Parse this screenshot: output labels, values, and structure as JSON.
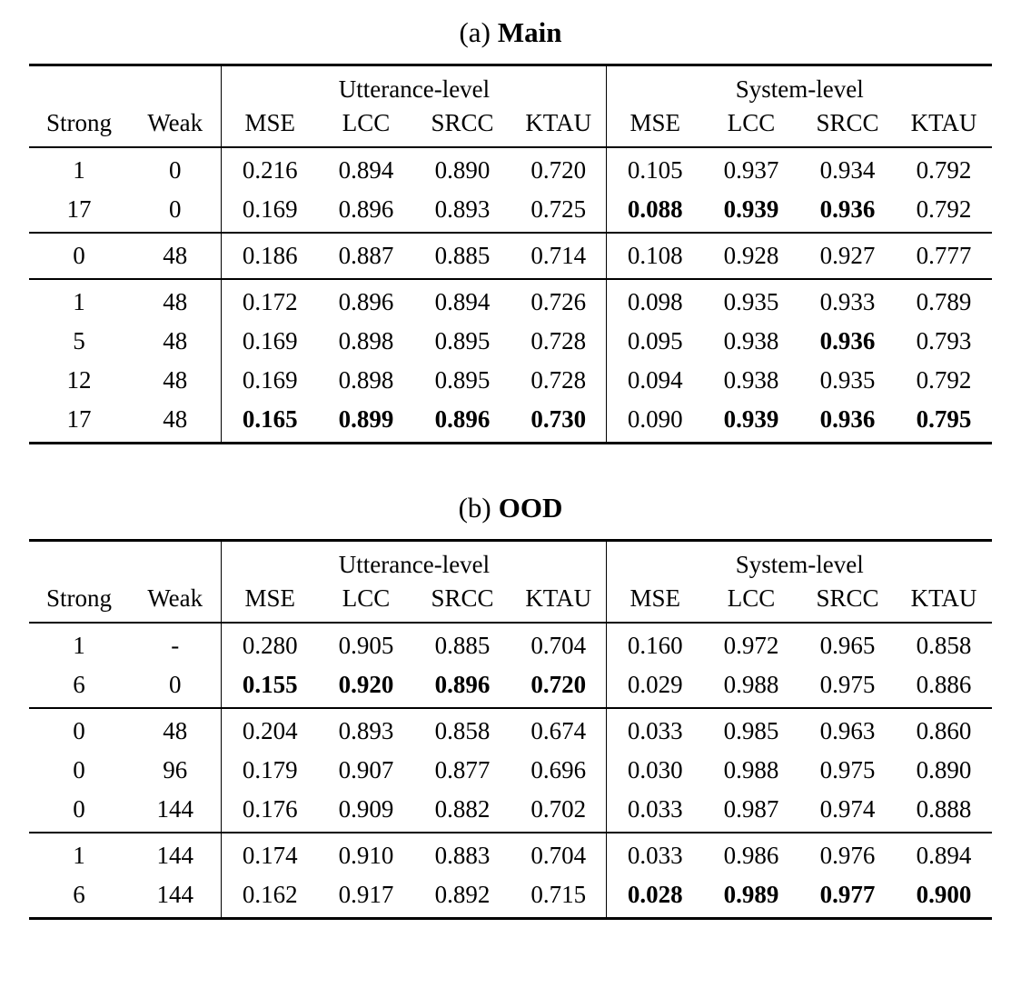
{
  "tables": [
    {
      "caption_prefix": "(a)",
      "caption_title": "Main",
      "col_groups": [
        "Utterance-level",
        "System-level"
      ],
      "headers": [
        "Strong",
        "Weak",
        "MSE",
        "LCC",
        "SRCC",
        "KTAU",
        "MSE",
        "LCC",
        "SRCC",
        "KTAU"
      ],
      "groups": [
        {
          "rows": [
            {
              "cells": [
                "1",
                "0",
                "0.216",
                "0.894",
                "0.890",
                "0.720",
                "0.105",
                "0.937",
                "0.934",
                "0.792"
              ],
              "bold": []
            },
            {
              "cells": [
                "17",
                "0",
                "0.169",
                "0.896",
                "0.893",
                "0.725",
                "0.088",
                "0.939",
                "0.936",
                "0.792"
              ],
              "bold": [
                6,
                7,
                8
              ]
            }
          ]
        },
        {
          "rows": [
            {
              "cells": [
                "0",
                "48",
                "0.186",
                "0.887",
                "0.885",
                "0.714",
                "0.108",
                "0.928",
                "0.927",
                "0.777"
              ],
              "bold": []
            }
          ]
        },
        {
          "rows": [
            {
              "cells": [
                "1",
                "48",
                "0.172",
                "0.896",
                "0.894",
                "0.726",
                "0.098",
                "0.935",
                "0.933",
                "0.789"
              ],
              "bold": []
            },
            {
              "cells": [
                "5",
                "48",
                "0.169",
                "0.898",
                "0.895",
                "0.728",
                "0.095",
                "0.938",
                "0.936",
                "0.793"
              ],
              "bold": [
                8
              ]
            },
            {
              "cells": [
                "12",
                "48",
                "0.169",
                "0.898",
                "0.895",
                "0.728",
                "0.094",
                "0.938",
                "0.935",
                "0.792"
              ],
              "bold": []
            },
            {
              "cells": [
                "17",
                "48",
                "0.165",
                "0.899",
                "0.896",
                "0.730",
                "0.090",
                "0.939",
                "0.936",
                "0.795"
              ],
              "bold": [
                2,
                3,
                4,
                5,
                7,
                8,
                9
              ]
            }
          ]
        }
      ]
    },
    {
      "caption_prefix": "(b)",
      "caption_title": "OOD",
      "col_groups": [
        "Utterance-level",
        "System-level"
      ],
      "headers": [
        "Strong",
        "Weak",
        "MSE",
        "LCC",
        "SRCC",
        "KTAU",
        "MSE",
        "LCC",
        "SRCC",
        "KTAU"
      ],
      "groups": [
        {
          "rows": [
            {
              "cells": [
                "1",
                "-",
                "0.280",
                "0.905",
                "0.885",
                "0.704",
                "0.160",
                "0.972",
                "0.965",
                "0.858"
              ],
              "bold": []
            },
            {
              "cells": [
                "6",
                "0",
                "0.155",
                "0.920",
                "0.896",
                "0.720",
                "0.029",
                "0.988",
                "0.975",
                "0.886"
              ],
              "bold": [
                2,
                3,
                4,
                5
              ]
            }
          ]
        },
        {
          "rows": [
            {
              "cells": [
                "0",
                "48",
                "0.204",
                "0.893",
                "0.858",
                "0.674",
                "0.033",
                "0.985",
                "0.963",
                "0.860"
              ],
              "bold": []
            },
            {
              "cells": [
                "0",
                "96",
                "0.179",
                "0.907",
                "0.877",
                "0.696",
                "0.030",
                "0.988",
                "0.975",
                "0.890"
              ],
              "bold": []
            },
            {
              "cells": [
                "0",
                "144",
                "0.176",
                "0.909",
                "0.882",
                "0.702",
                "0.033",
                "0.987",
                "0.974",
                "0.888"
              ],
              "bold": []
            }
          ]
        },
        {
          "rows": [
            {
              "cells": [
                "1",
                "144",
                "0.174",
                "0.910",
                "0.883",
                "0.704",
                "0.033",
                "0.986",
                "0.976",
                "0.894"
              ],
              "bold": []
            },
            {
              "cells": [
                "6",
                "144",
                "0.162",
                "0.917",
                "0.892",
                "0.715",
                "0.028",
                "0.989",
                "0.977",
                "0.900"
              ],
              "bold": [
                6,
                7,
                8,
                9
              ]
            }
          ]
        }
      ]
    }
  ]
}
